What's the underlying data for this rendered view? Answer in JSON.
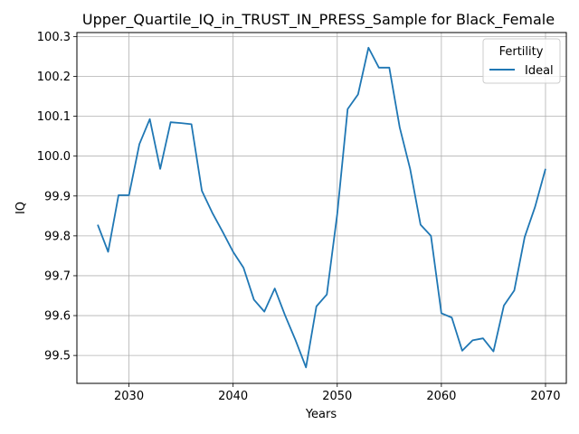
{
  "chart_data": {
    "type": "line",
    "title": "Upper_Quartile_IQ_in_TRUST_IN_PRESS_Sample for Black_Female",
    "xlabel": "Years",
    "ylabel": "IQ",
    "xlim": [
      2025,
      2072
    ],
    "ylim": [
      99.43,
      100.31
    ],
    "xticks": [
      2030,
      2040,
      2050,
      2060,
      2070
    ],
    "yticks": [
      99.5,
      99.6,
      99.7,
      99.8,
      99.9,
      100.0,
      100.1,
      100.2,
      100.3
    ],
    "ytick_labels": [
      "99.5",
      "99.6",
      "99.7",
      "99.8",
      "99.9",
      "100.0",
      "100.1",
      "100.2",
      "100.3"
    ],
    "grid": true,
    "legend": {
      "title": "Fertility",
      "placement": "top-right"
    },
    "series": [
      {
        "name": "Ideal",
        "color": "#1f77b4",
        "x": [
          2027,
          2028,
          2029,
          2030,
          2031,
          2032,
          2033,
          2034,
          2035,
          2036,
          2037,
          2038,
          2039,
          2040,
          2041,
          2042,
          2043,
          2044,
          2045,
          2046,
          2047,
          2048,
          2049,
          2050,
          2051,
          2052,
          2053,
          2054,
          2055,
          2056,
          2057,
          2058,
          2059,
          2060,
          2061,
          2062,
          2063,
          2064,
          2065,
          2066,
          2067,
          2068,
          2069,
          2070
        ],
        "y": [
          99.828,
          99.76,
          99.902,
          99.902,
          100.03,
          100.093,
          99.968,
          100.085,
          100.083,
          100.08,
          99.913,
          99.858,
          99.81,
          99.76,
          99.72,
          99.64,
          99.61,
          99.668,
          99.6,
          99.538,
          99.47,
          99.623,
          99.653,
          99.855,
          100.118,
          100.155,
          100.272,
          100.222,
          100.222,
          100.072,
          99.968,
          99.828,
          99.8,
          99.606,
          99.595,
          99.512,
          99.538,
          99.543,
          99.51,
          99.625,
          99.663,
          99.797,
          99.873,
          99.968
        ]
      }
    ]
  }
}
